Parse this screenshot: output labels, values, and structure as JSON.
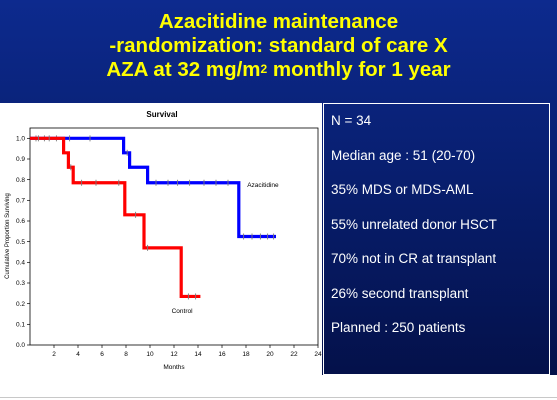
{
  "slide": {
    "title_line1": "Azacitidine maintenance",
    "title_line2": "-randomization: standard of care X",
    "title_line3_pre": "AZA at 32 mg/m",
    "title_line3_sup": "2",
    "title_line3_post": " monthly for 1 year"
  },
  "info_items": [
    "N = 34",
    "Median age : 51 (20-70)",
    "35% MDS or MDS-AML",
    "55% unrelated donor HSCT",
    "70% not in CR at transplant",
    "26% second transplant",
    "Planned : 250 patients"
  ],
  "chart_data": {
    "type": "line",
    "title": "Survival",
    "xlabel": "Months",
    "ylabel": "Cumulative Proportion Surviving",
    "xlim": [
      0,
      24
    ],
    "ylim": [
      0,
      1.05
    ],
    "x_ticks": [
      "2",
      "4",
      "6",
      "8",
      "10",
      "12",
      "14",
      "16",
      "18",
      "20",
      "22",
      "24"
    ],
    "y_ticks": [
      "0.0",
      "0.1",
      "0.2",
      "0.3",
      "0.4",
      "0.5",
      "0.6",
      "0.7",
      "0.8",
      "0.9",
      "1.0"
    ],
    "series": [
      {
        "name": "Azacitidine",
        "color": "#0000ff",
        "steps": [
          [
            0,
            1.0
          ],
          [
            7.8,
            0.93
          ],
          [
            8.3,
            0.86
          ],
          [
            9.8,
            0.785
          ],
          [
            17.4,
            0.525
          ],
          [
            20.5,
            0.525
          ]
        ],
        "censored": [
          [
            0.5,
            1.0
          ],
          [
            1.2,
            1.0
          ],
          [
            2.2,
            1.0
          ],
          [
            3.3,
            1.0
          ],
          [
            5.0,
            1.0
          ],
          [
            8.1,
            0.93
          ],
          [
            10.5,
            0.785
          ],
          [
            11.5,
            0.785
          ],
          [
            12.3,
            0.785
          ],
          [
            13.3,
            0.785
          ],
          [
            14.5,
            0.785
          ],
          [
            15.5,
            0.785
          ],
          [
            16.5,
            0.785
          ],
          [
            17.8,
            0.525
          ],
          [
            18.5,
            0.525
          ],
          [
            19.2,
            0.525
          ],
          [
            19.8,
            0.525
          ],
          [
            20.3,
            0.525
          ]
        ]
      },
      {
        "name": "Control",
        "color": "#ff0000",
        "steps": [
          [
            0,
            1.0
          ],
          [
            2.8,
            0.93
          ],
          [
            3.2,
            0.86
          ],
          [
            3.6,
            0.785
          ],
          [
            7.9,
            0.63
          ],
          [
            9.5,
            0.47
          ],
          [
            12.6,
            0.235
          ],
          [
            14.2,
            0.235
          ]
        ],
        "censored": [
          [
            0.7,
            1.0
          ],
          [
            1.6,
            1.0
          ],
          [
            3.4,
            0.86
          ],
          [
            4.3,
            0.785
          ],
          [
            5.5,
            0.785
          ],
          [
            7.4,
            0.785
          ],
          [
            8.8,
            0.63
          ],
          [
            9.8,
            0.47
          ],
          [
            13.2,
            0.235
          ],
          [
            13.8,
            0.235
          ]
        ]
      }
    ],
    "annotations": [
      {
        "text": "Azacitidine",
        "x": 18.1,
        "y": 0.765
      },
      {
        "text": "Control",
        "x": 11.8,
        "y": 0.155
      }
    ],
    "grid": false,
    "legend": "none"
  }
}
